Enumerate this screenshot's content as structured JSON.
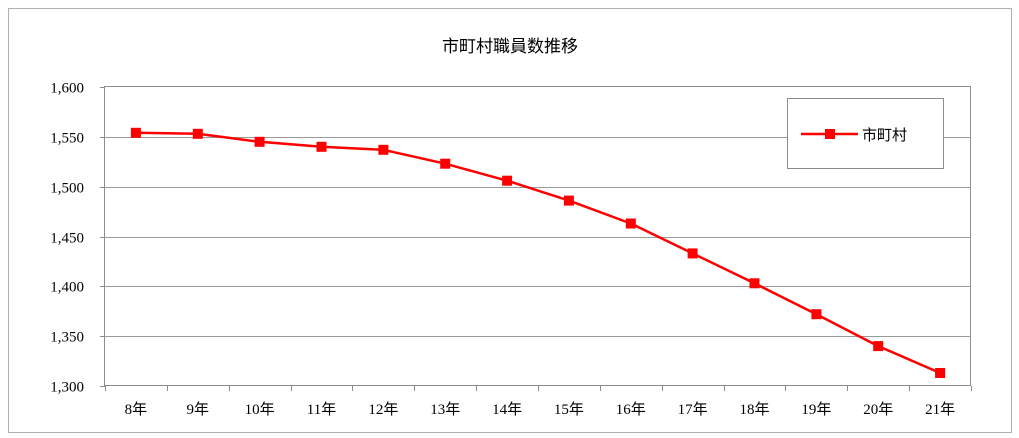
{
  "chart_data": {
    "type": "line",
    "title": "市町村職員数推移",
    "categories": [
      "8年",
      "9年",
      "10年",
      "11年",
      "12年",
      "13年",
      "14年",
      "15年",
      "16年",
      "17年",
      "18年",
      "19年",
      "20年",
      "21年"
    ],
    "series": [
      {
        "name": "市町村",
        "color": "#ff0000",
        "marker": "square",
        "values": [
          1554,
          1553,
          1545,
          1540,
          1537,
          1523,
          1506,
          1486,
          1463,
          1433,
          1403,
          1372,
          1340,
          1313
        ]
      }
    ],
    "y_ticks": [
      "1,300",
      "1,350",
      "1,400",
      "1,450",
      "1,500",
      "1,550",
      "1,600"
    ],
    "ylim": [
      1300,
      1600
    ],
    "ytick_step": 50,
    "grid": "horizontal",
    "legend_position": "top-right",
    "xlabel": "",
    "ylabel": ""
  }
}
